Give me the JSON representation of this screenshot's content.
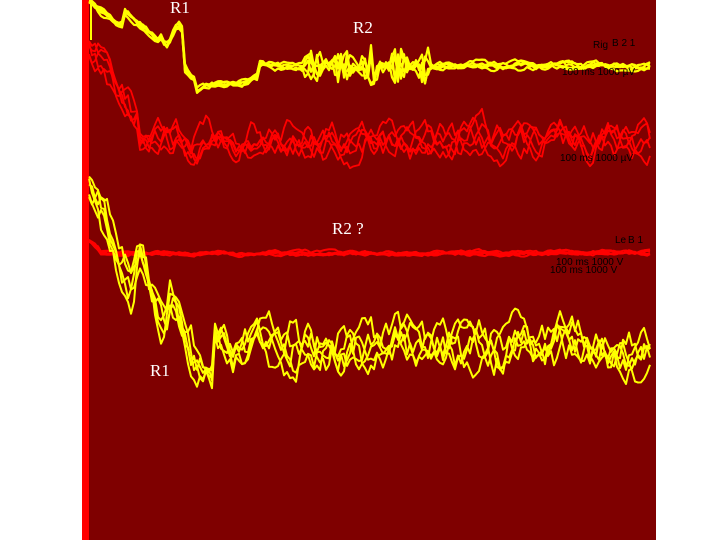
{
  "colors": {
    "background": "#7f0000",
    "page": "#ffffff",
    "trace_yellow": "#ffff00",
    "trace_red": "#ff0000",
    "annotation_text": "#ffffff",
    "scale_text": "#000000"
  },
  "annotations": {
    "r1_top": "R1",
    "r2_top": "R2",
    "r2_mid": "R2 ?",
    "r1_bottom": "R1"
  },
  "scale_labels": {
    "panel1_side": "Rig",
    "panel1_nums": "B 2 1",
    "panel1_scale": "100 ms 1000 µV",
    "panel2_scale": "100 ms 1000 µV",
    "panel3_side": "Le",
    "panel3_nums": "B 1",
    "panel3_scale_a": "100 ms 1000 V",
    "panel3_scale_b": "100 ms 1000 V"
  },
  "chart_data": {
    "type": "line",
    "title": "",
    "xlabel": "",
    "ylabel": "",
    "x_range_ms": [
      0,
      100
    ],
    "panels": [
      {
        "id": "top-yellow",
        "color": "#ffff00",
        "sweeps": 5,
        "components": [
          {
            "label": "R1",
            "peak_time_ms": 15
          },
          {
            "label": "R2",
            "peak_time_ms": 42
          }
        ]
      },
      {
        "id": "upper-red",
        "color": "#ff0000",
        "sweeps": 5,
        "components": []
      },
      {
        "id": "middle-red",
        "color": "#ff0000",
        "sweeps": 5,
        "components": [
          {
            "label": "R2 ?",
            "peak_time_ms": 50
          }
        ]
      },
      {
        "id": "bottom-yellow",
        "color": "#ffff00",
        "sweeps": 5,
        "components": [
          {
            "label": "R1",
            "peak_time_ms": 12
          }
        ]
      }
    ]
  }
}
